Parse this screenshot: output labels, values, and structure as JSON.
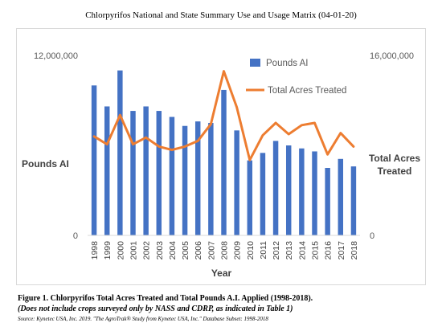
{
  "page": {
    "title": "Chlorpyrifos National and State Summary Use and Usage Matrix (04-01-20)",
    "figure_caption": "Figure 1.  Chlorpyrifos Total Acres Treated and Total Pounds A.I. Applied (1998-2018).",
    "figure_note": "(Does not include crops surveyed only by NASS and CDRP, as indicated in Table 1)",
    "source": "Source: Kynetec USA, Inc. 2019. \"The AgroTrak® Study from Kynetec USA, Inc.\" Database Subset: 1998-2018"
  },
  "chart_data": {
    "type": "bar",
    "categories": [
      "1998",
      "1999",
      "2000",
      "2001",
      "2002",
      "2003",
      "2004",
      "2005",
      "2006",
      "2007",
      "2008",
      "2009",
      "2010",
      "2011",
      "2012",
      "2013",
      "2014",
      "2015",
      "2016",
      "2017",
      "2018"
    ],
    "xlabel": "Year",
    "ylabel_left": "Pounds AI",
    "ylabel_right": "Total Acres Treated",
    "ylim_left": [
      0,
      12000000
    ],
    "ylim_right": [
      0,
      16000000
    ],
    "ytick_labels_left": [
      "0",
      "12,000,000"
    ],
    "ytick_labels_right": [
      "0",
      "16,000,000"
    ],
    "legend_position": "top-right",
    "grid": false,
    "series": [
      {
        "name": "Pounds AI",
        "type": "bar",
        "axis": "left",
        "color": "#4472C4",
        "values": [
          10000000,
          8600000,
          11000000,
          8300000,
          8600000,
          8300000,
          7900000,
          7300000,
          7600000,
          7500000,
          9700000,
          7000000,
          5000000,
          5500000,
          6300000,
          6000000,
          5800000,
          5600000,
          4500000,
          5100000,
          4600000
        ]
      },
      {
        "name": "Total Acres Treated",
        "type": "line",
        "axis": "right",
        "color": "#ED7D31",
        "values": [
          8800000,
          8100000,
          10700000,
          8100000,
          8700000,
          7900000,
          7600000,
          7900000,
          8400000,
          9900000,
          14600000,
          11400000,
          6700000,
          8900000,
          10000000,
          9000000,
          9800000,
          10000000,
          7200000,
          9100000,
          7900000
        ]
      }
    ]
  }
}
